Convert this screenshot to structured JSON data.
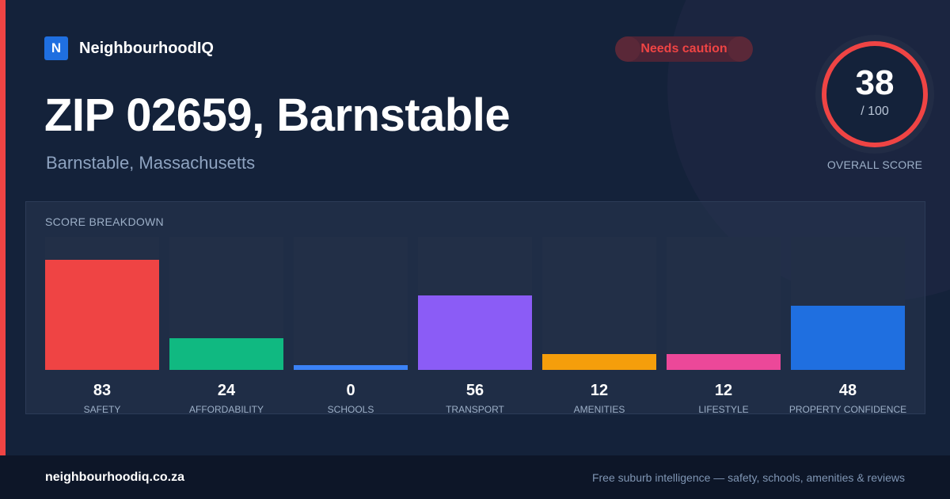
{
  "brand": {
    "logo_letter": "N",
    "name": "NeighbourhoodIQ",
    "logo_color": "#1f6fe0"
  },
  "badge": {
    "label": "Needs caution",
    "color": "#ef4444"
  },
  "location": {
    "title": "ZIP 02659, Barnstable",
    "subtitle": "Barnstable, Massachusetts"
  },
  "overall": {
    "score": "38",
    "max": "/ 100",
    "label": "OVERALL SCORE",
    "fraction": 0.38,
    "ring_color": "#ef4444"
  },
  "breakdown": {
    "title": "SCORE BREAKDOWN"
  },
  "chart_data": {
    "type": "bar",
    "ylim": [
      0,
      100
    ],
    "categories": [
      "SAFETY",
      "AFFORDABILITY",
      "SCHOOLS",
      "TRANSPORT",
      "AMENITIES",
      "LIFESTYLE",
      "PROPERTY CONFIDENCE"
    ],
    "values": [
      83,
      24,
      0,
      56,
      12,
      12,
      48
    ],
    "colors": [
      "#ef4444",
      "#10b981",
      "#3b82f6",
      "#8b5cf6",
      "#f59e0b",
      "#ec4899",
      "#1f6fe0"
    ]
  },
  "footer": {
    "url": "neighbourhoodiq.co.za",
    "tagline": "Free suburb intelligence — safety, schools, amenities & reviews"
  }
}
